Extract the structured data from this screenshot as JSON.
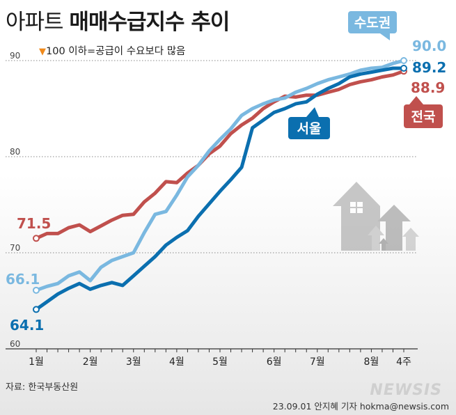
{
  "title": {
    "light": "아파트",
    "bold": "매매수급지수 추이"
  },
  "note": {
    "marker": "▼",
    "text": "100 이하=공급이 수요보다 많음"
  },
  "source": "자료: 한국부동산원",
  "byline": "23.09.01 안지혜 기자 hokma@newsis.com",
  "watermark": "NEWSIS",
  "icons": [
    "house-illustration"
  ],
  "chart_data": {
    "type": "line",
    "title": "아파트 매매수급지수 추이",
    "ylim": [
      60,
      90
    ],
    "yticks": [
      60,
      70,
      80,
      90
    ],
    "grid": "horizontal dotted",
    "x_count": 35,
    "xtick_labels": [
      {
        "label": "1월",
        "index": 0
      },
      {
        "label": "2월",
        "index": 5
      },
      {
        "label": "3월",
        "index": 9
      },
      {
        "label": "4월",
        "index": 13
      },
      {
        "label": "5월",
        "index": 17
      },
      {
        "label": "6월",
        "index": 22
      },
      {
        "label": "7월",
        "index": 26
      },
      {
        "label": "8월",
        "index": 31
      },
      {
        "label": "4주",
        "index": 34
      }
    ],
    "series": [
      {
        "name": "전국",
        "color": "#c0504d",
        "start_label": "71.5",
        "end_label": "88.9",
        "values": [
          71.5,
          72.0,
          72.0,
          72.6,
          72.9,
          72.2,
          72.8,
          73.4,
          73.9,
          74.0,
          75.3,
          76.2,
          77.4,
          77.3,
          78.3,
          79.1,
          80.3,
          81.1,
          82.4,
          83.3,
          84.0,
          85.0,
          85.7,
          86.3,
          86.2,
          86.4,
          86.4,
          86.7,
          87.0,
          87.5,
          87.8,
          88.0,
          88.3,
          88.5,
          88.9
        ]
      },
      {
        "name": "수도권",
        "color": "#7ab8e0",
        "start_label": "66.1",
        "end_label": "90.0",
        "values": [
          66.1,
          66.5,
          66.8,
          67.6,
          68.0,
          67.1,
          68.5,
          69.2,
          69.6,
          70.0,
          72.1,
          74.0,
          74.3,
          76.0,
          77.9,
          79.1,
          80.6,
          81.8,
          82.9,
          84.3,
          85.0,
          85.5,
          85.9,
          86.1,
          86.7,
          87.1,
          87.6,
          88.0,
          88.3,
          88.6,
          89.0,
          89.2,
          89.3,
          89.7,
          90.0
        ]
      },
      {
        "name": "서울",
        "color": "#0b6faf",
        "start_label": "64.1",
        "end_label": "89.2",
        "values": [
          64.1,
          64.9,
          65.7,
          66.3,
          66.8,
          66.2,
          66.6,
          66.9,
          66.6,
          67.6,
          68.6,
          69.6,
          70.8,
          71.6,
          72.3,
          73.8,
          75.1,
          76.4,
          77.6,
          78.9,
          83.0,
          83.8,
          84.6,
          85.0,
          85.5,
          85.7,
          86.5,
          87.1,
          87.6,
          88.3,
          88.6,
          88.8,
          89.0,
          89.2,
          89.2
        ]
      }
    ]
  }
}
